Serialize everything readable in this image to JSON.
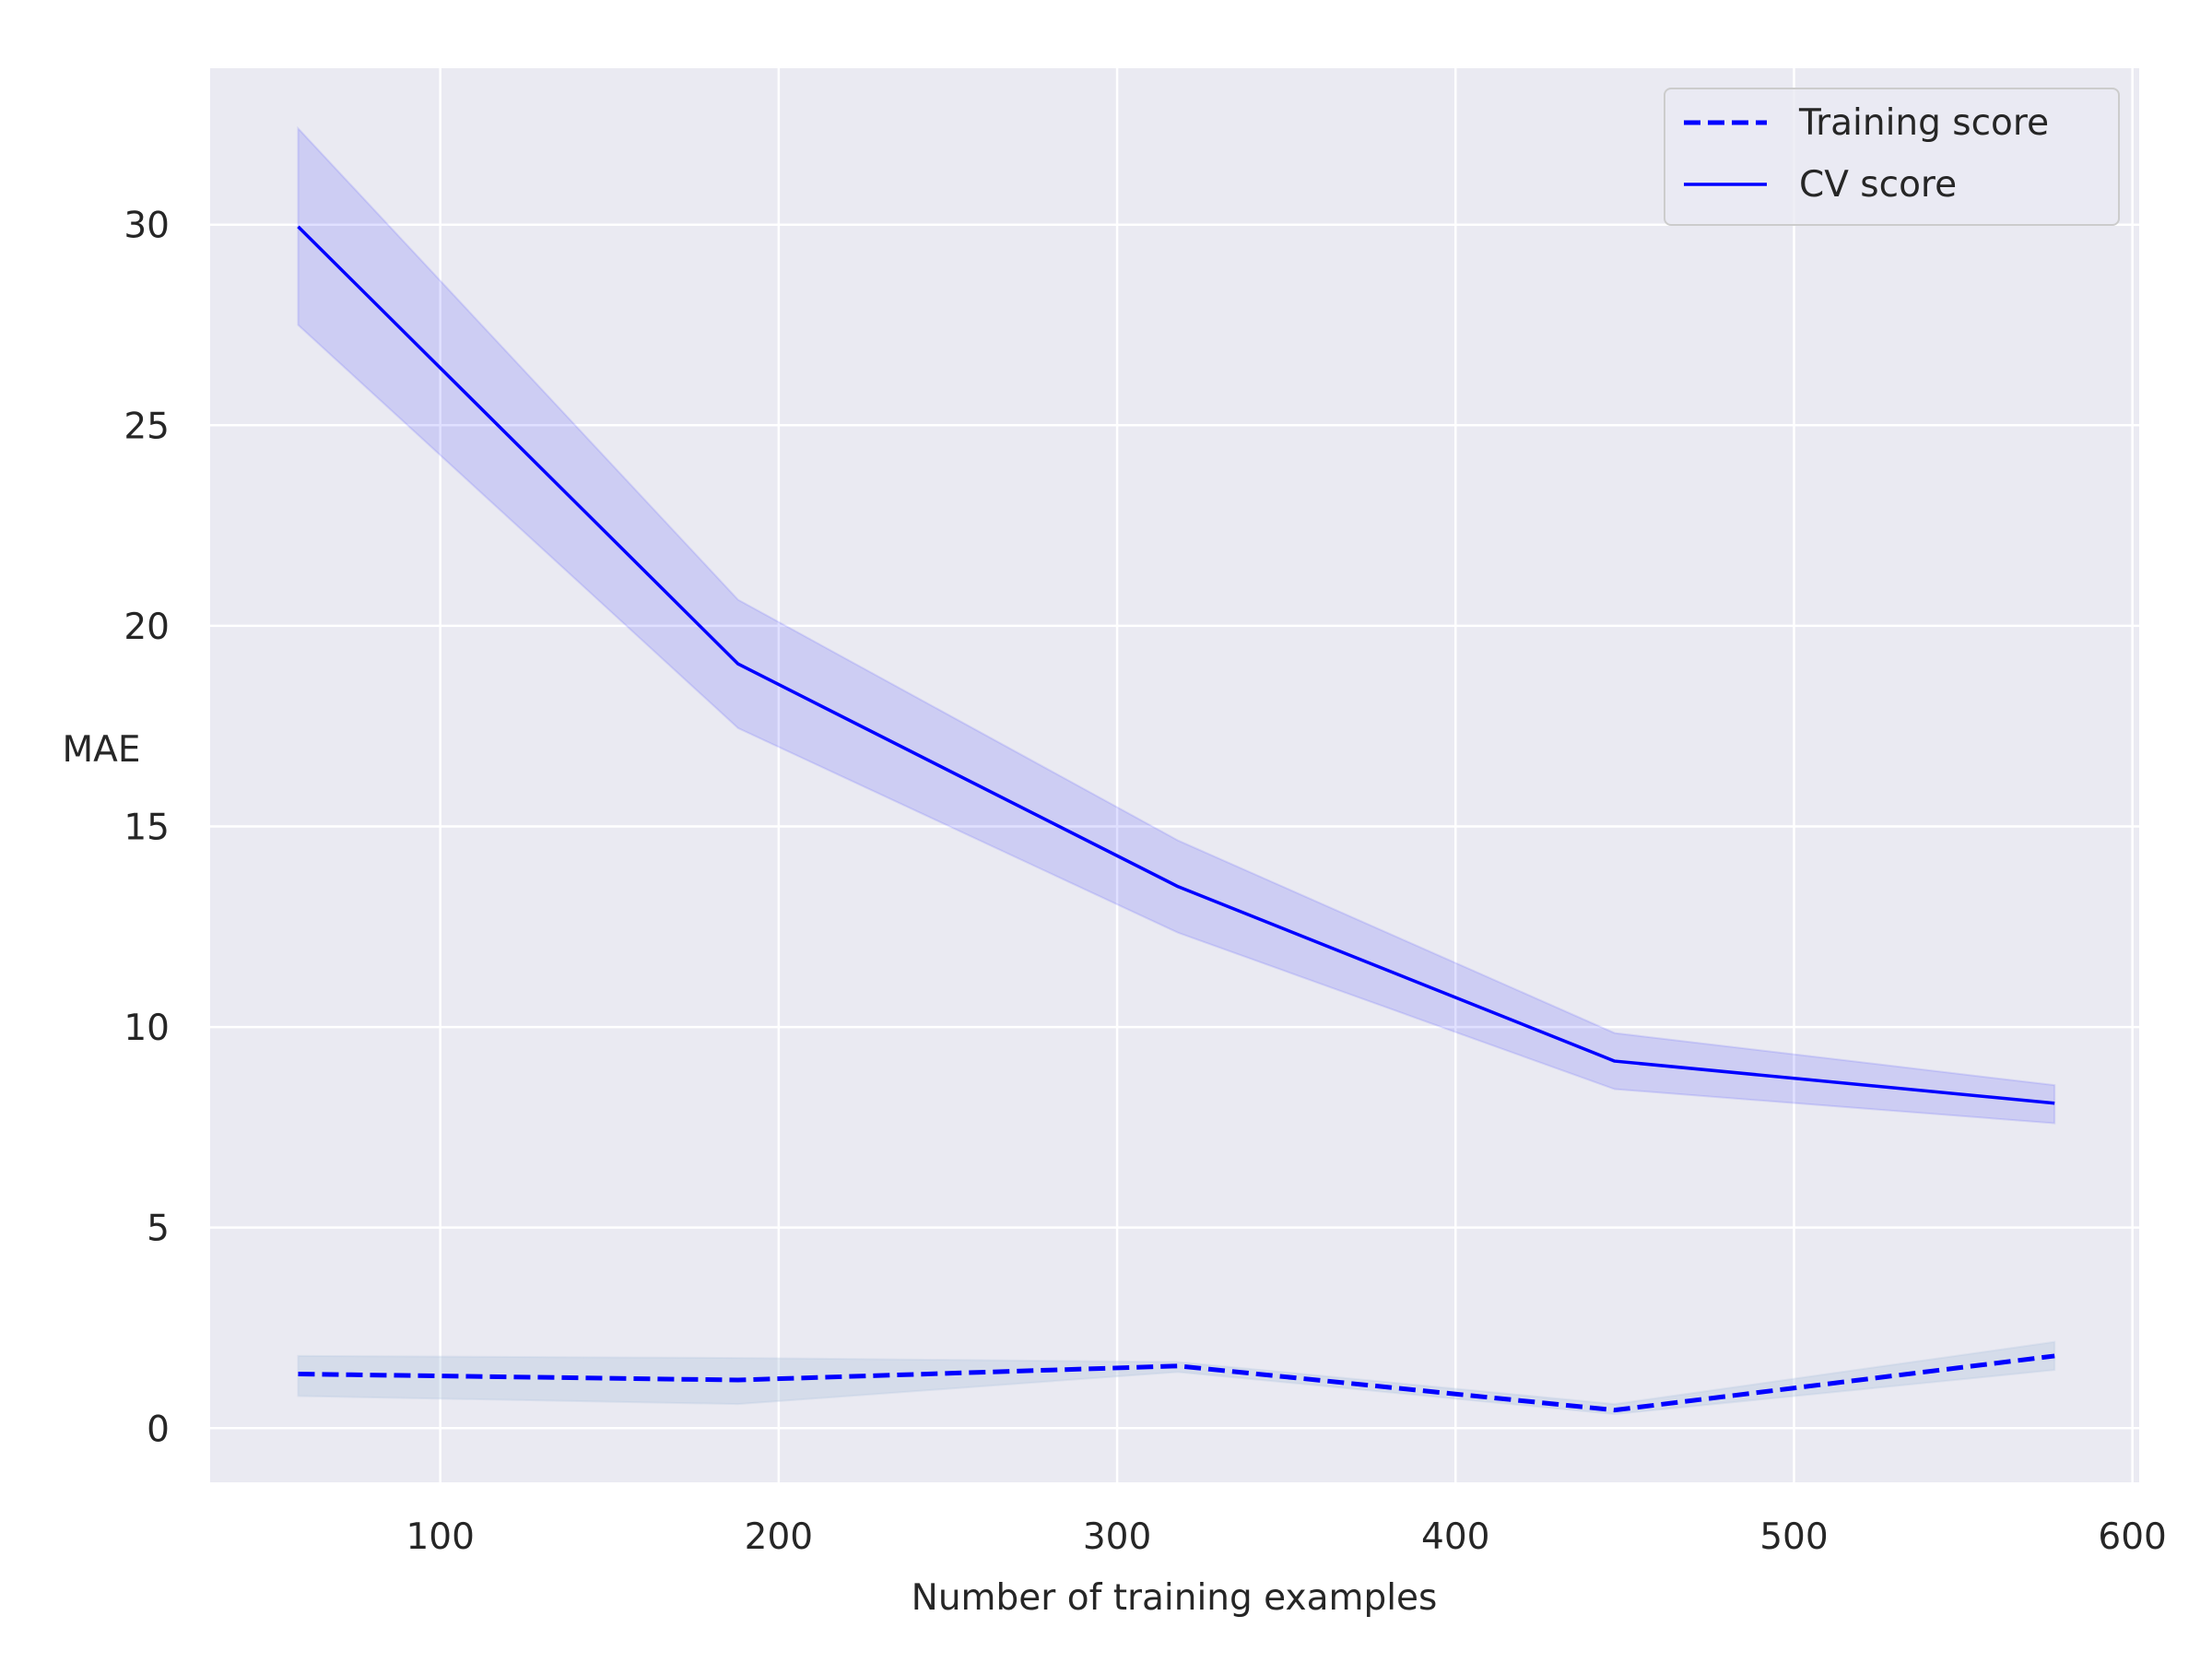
{
  "chart_data": {
    "type": "line",
    "title": "",
    "xlabel": "Number of training examples",
    "ylabel": "MAE",
    "xlim": [
      32,
      602
    ],
    "ylim": [
      -1.35,
      33.9
    ],
    "xticks": [
      100,
      200,
      300,
      400,
      500,
      600
    ],
    "yticks": [
      0,
      5,
      10,
      15,
      20,
      25,
      30
    ],
    "xtick_labels": [
      "100",
      "200",
      "300",
      "400",
      "500",
      "600"
    ],
    "ytick_labels": [
      "0",
      "5",
      "10",
      "15",
      "20",
      "25",
      "30"
    ],
    "grid": true,
    "legend_position": "top-right",
    "x": [
      58,
      188,
      318,
      447,
      577
    ],
    "series": [
      {
        "name": "Training score",
        "line_style": "dashed",
        "color": "#0000ff",
        "values": [
          1.35,
          1.2,
          1.55,
          0.45,
          1.8
        ],
        "band_lower": [
          0.8,
          0.6,
          1.4,
          0.35,
          1.45
        ],
        "band_upper": [
          1.8,
          1.75,
          1.65,
          0.6,
          2.15
        ],
        "band_color": "#b0c4de"
      },
      {
        "name": "CV score",
        "line_style": "solid",
        "color": "#0000ff",
        "values": [
          29.95,
          19.05,
          13.5,
          9.15,
          8.1
        ],
        "band_lower": [
          27.5,
          17.45,
          12.35,
          8.45,
          7.6
        ],
        "band_upper": [
          32.4,
          20.65,
          14.65,
          9.85,
          8.55
        ],
        "band_color": "#0000ff"
      }
    ],
    "colors": {
      "background": "#eaeaf2",
      "grid": "#ffffff",
      "text": "#262626"
    }
  }
}
